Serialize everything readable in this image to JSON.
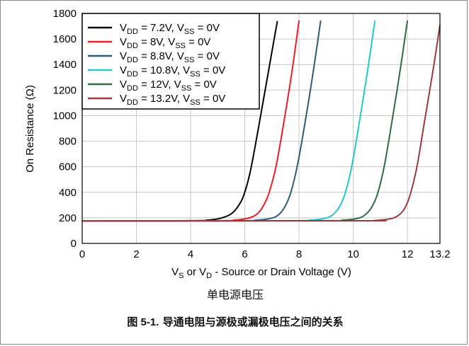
{
  "chart_data": {
    "type": "line",
    "xlabel": {
      "parts": [
        [
          "V",
          ""
        ],
        [
          "S",
          "sub"
        ],
        [
          " or V",
          ""
        ],
        [
          "D",
          "sub"
        ],
        [
          " - Source or Drain Voltage (V)",
          ""
        ]
      ]
    },
    "ylabel": "On Resistance (Ω)",
    "xlim": [
      0,
      13.2
    ],
    "ylim": [
      0,
      1800
    ],
    "x_ticks": [
      0,
      2,
      4,
      6,
      8,
      10,
      12,
      13.2
    ],
    "y_ticks": [
      0,
      200,
      400,
      600,
      800,
      1000,
      1200,
      1400,
      1600,
      1800
    ],
    "grid": true,
    "legend_position": "top-left",
    "series": [
      {
        "label": [
          [
            "V",
            ""
          ],
          [
            "DD",
            "sub"
          ],
          [
            " = 7.2V, V",
            ""
          ],
          [
            "SS",
            "sub"
          ],
          [
            " = 0V",
            ""
          ]
        ],
        "color": "#000000",
        "x": [
          0,
          4.0,
          4.6,
          5.0,
          5.3,
          5.55,
          5.75,
          5.95,
          6.2,
          6.5,
          6.85,
          7.2
        ],
        "y": [
          175,
          178,
          182,
          192,
          210,
          240,
          290,
          370,
          560,
          900,
          1320,
          1740
        ]
      },
      {
        "label": [
          [
            "V",
            ""
          ],
          [
            "DD",
            "sub"
          ],
          [
            " = 8V, V",
            ""
          ],
          [
            "SS",
            "sub"
          ],
          [
            " = 0V",
            ""
          ]
        ],
        "color": "#ee1c25",
        "x": [
          0,
          5.0,
          5.6,
          6.0,
          6.3,
          6.5,
          6.7,
          6.9,
          7.15,
          7.45,
          7.75,
          8.0
        ],
        "y": [
          175,
          178,
          182,
          192,
          210,
          240,
          300,
          400,
          600,
          960,
          1360,
          1745
        ]
      },
      {
        "label": [
          [
            "V",
            ""
          ],
          [
            "DD",
            "sub"
          ],
          [
            " = 8.8V, V",
            ""
          ],
          [
            "SS",
            "sub"
          ],
          [
            " = 0V",
            ""
          ]
        ],
        "color": "#2e5b7a",
        "x": [
          0,
          5.8,
          6.4,
          6.8,
          7.1,
          7.3,
          7.5,
          7.7,
          7.95,
          8.25,
          8.55,
          8.8
        ],
        "y": [
          175,
          178,
          182,
          190,
          205,
          235,
          295,
          400,
          620,
          980,
          1380,
          1745
        ]
      },
      {
        "label": [
          [
            "V",
            ""
          ],
          [
            "DD",
            "sub"
          ],
          [
            " = 10.8V, V",
            ""
          ],
          [
            "SS",
            "sub"
          ],
          [
            " = 0V",
            ""
          ]
        ],
        "color": "#21c9cb",
        "x": [
          0,
          7.8,
          8.4,
          8.8,
          9.1,
          9.3,
          9.5,
          9.7,
          9.95,
          10.25,
          10.55,
          10.8
        ],
        "y": [
          175,
          178,
          182,
          190,
          205,
          235,
          290,
          390,
          610,
          980,
          1380,
          1745
        ]
      },
      {
        "label": [
          [
            "V",
            ""
          ],
          [
            "DD",
            "sub"
          ],
          [
            " = 12V, V",
            ""
          ],
          [
            "SS",
            "sub"
          ],
          [
            " = 0V",
            ""
          ]
        ],
        "color": "#2e6b47",
        "x": [
          0,
          9.0,
          9.6,
          10.0,
          10.3,
          10.5,
          10.7,
          10.9,
          11.15,
          11.45,
          11.75,
          12.0
        ],
        "y": [
          175,
          178,
          182,
          190,
          205,
          235,
          290,
          390,
          610,
          980,
          1380,
          1745
        ]
      },
      {
        "label": [
          [
            "V",
            ""
          ],
          [
            "DD",
            "sub"
          ],
          [
            " = 13.2V, V",
            ""
          ],
          [
            "SS",
            "sub"
          ],
          [
            " = 0V",
            ""
          ]
        ],
        "color": "#9b3a3a",
        "x": [
          0,
          10.3,
          10.8,
          11.2,
          11.5,
          11.7,
          11.9,
          12.1,
          12.35,
          12.65,
          12.95,
          13.2
        ],
        "y": [
          175,
          177,
          180,
          187,
          200,
          225,
          275,
          380,
          600,
          980,
          1360,
          1710
        ]
      }
    ]
  },
  "captions": {
    "subtitle": "单电源电压",
    "figure_number": "图 5-1.",
    "figure_title": "导通电阻与源极或漏极电压之间的关系"
  }
}
